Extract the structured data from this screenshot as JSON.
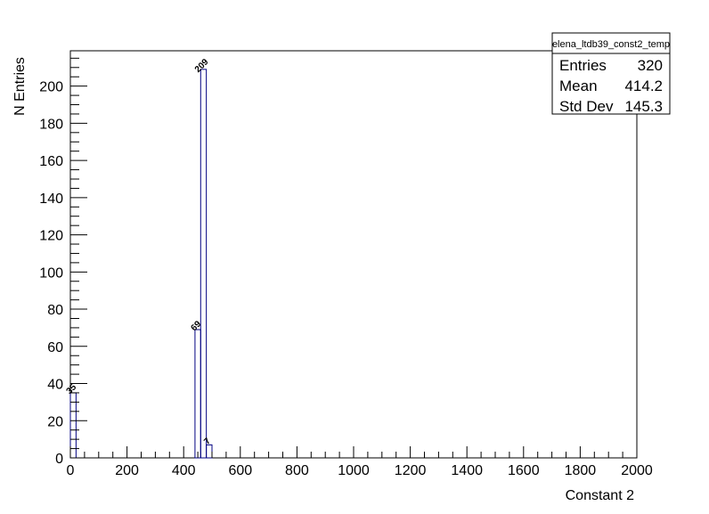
{
  "chart_data": {
    "type": "histogram",
    "title": "",
    "xlabel": "Constant 2",
    "ylabel": "N Entries",
    "xlim": [
      0,
      2000
    ],
    "ylim": [
      0,
      219
    ],
    "x_ticks": [
      0,
      200,
      400,
      600,
      800,
      1000,
      1200,
      1400,
      1600,
      1800,
      2000
    ],
    "y_ticks": [
      0,
      20,
      40,
      60,
      80,
      100,
      120,
      140,
      160,
      180,
      200
    ],
    "bin_width": 20,
    "series": [
      {
        "bins": [
          {
            "x0": 0,
            "x1": 20,
            "value": 35,
            "label": "35"
          },
          {
            "x0": 440,
            "x1": 460,
            "value": 69,
            "label": "69"
          },
          {
            "x0": 460,
            "x1": 480,
            "value": 209,
            "label": "209"
          },
          {
            "x0": 480,
            "x1": 500,
            "value": 7,
            "label": "7"
          }
        ]
      }
    ],
    "grid": false,
    "legend": "none",
    "stats_box": {
      "name": "elena_ltdb39_const2_temp",
      "rows": [
        {
          "label": "Entries",
          "value": "320"
        },
        {
          "label": "Mean",
          "value": "414.2"
        },
        {
          "label": "Std Dev",
          "value": "145.3"
        }
      ],
      "placement": "top-right"
    },
    "colors": {
      "line": "#000080",
      "axis": "#000000",
      "background": "#ffffff"
    }
  }
}
